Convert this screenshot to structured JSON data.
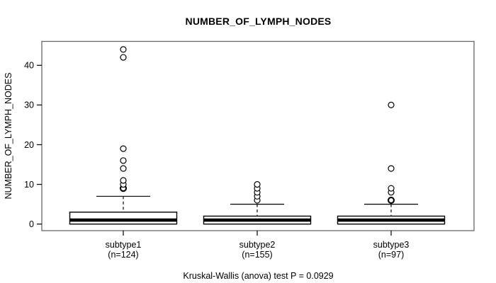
{
  "chart_data": {
    "type": "boxplot",
    "title": "NUMBER_OF_LYMPH_NODES",
    "ylabel": "NUMBER_OF_LYMPH_NODES",
    "footnote": "Kruskal-Wallis (anova) test P = 0.0929",
    "yticks": [
      0,
      10,
      20,
      30,
      40
    ],
    "ylim": [
      -1.7,
      46
    ],
    "grid": false,
    "box_fill": "#ffffff",
    "line_color": "#000000",
    "frame_color": "#666666",
    "groups": [
      {
        "label": "subtype1",
        "n_label": "(n=124)",
        "n": 124,
        "q1": 0,
        "median": 1,
        "q3": 3,
        "whisker_low": 0,
        "whisker_high": 7,
        "outliers": [
          9,
          9,
          10,
          11,
          14,
          16,
          19,
          42,
          44
        ]
      },
      {
        "label": "subtype2",
        "n_label": "(n=155)",
        "n": 155,
        "q1": 0,
        "median": 1,
        "q3": 2,
        "whisker_low": 0,
        "whisker_high": 5,
        "outliers": [
          6,
          7,
          8,
          9,
          10
        ]
      },
      {
        "label": "subtype3",
        "n_label": "(n=97)",
        "n": 97,
        "q1": 0,
        "median": 1,
        "q3": 2,
        "whisker_low": 0,
        "whisker_high": 5,
        "outliers": [
          6,
          6,
          8,
          9,
          14,
          30
        ]
      }
    ]
  }
}
